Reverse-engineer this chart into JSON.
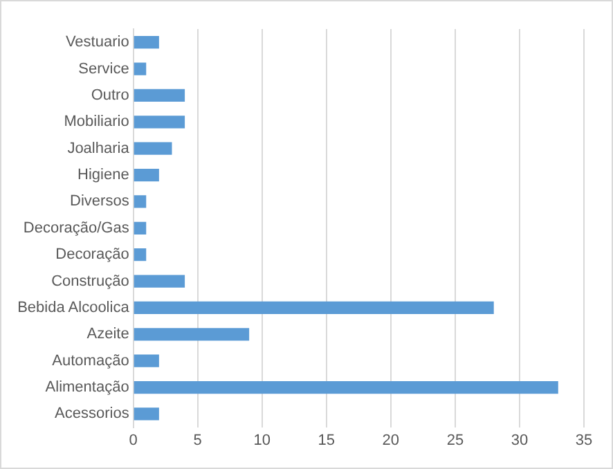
{
  "chart_data": {
    "type": "bar",
    "orientation": "horizontal",
    "categories": [
      "Vestuario",
      "Service",
      "Outro",
      "Mobiliario",
      "Joalharia",
      "Higiene",
      "Diversos",
      "Decoração/Gas",
      "Decoração",
      "Construção",
      "Bebida Alcoolica",
      "Azeite",
      "Automação",
      "Alimentação",
      "Acessorios"
    ],
    "values": [
      2,
      1,
      4,
      4,
      3,
      2,
      1,
      1,
      1,
      4,
      28,
      9,
      2,
      33,
      2
    ],
    "color": "#5b9bd5",
    "xlim": [
      0,
      35
    ],
    "xticks": [
      0,
      5,
      10,
      15,
      20,
      25,
      30,
      35
    ],
    "grid": "x",
    "legend": false
  }
}
